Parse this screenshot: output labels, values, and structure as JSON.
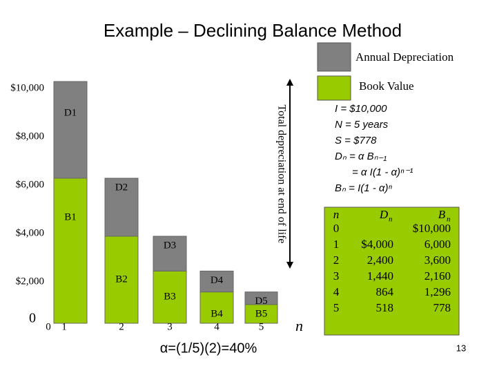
{
  "title": "Example – Declining Balance Method",
  "chart_data": {
    "type": "stacked_bar",
    "categories": [
      "1",
      "2",
      "3",
      "4",
      "5"
    ],
    "x_origin_label": "0",
    "x_axis_label": "n",
    "series": [
      {
        "name": "Book Value",
        "color": "#99cc00",
        "values": [
          6000,
          3600,
          2160,
          1296,
          778
        ],
        "labels": [
          "B1",
          "B2",
          "B3",
          "B4",
          "B5"
        ]
      },
      {
        "name": "Annual Depreciation",
        "color": "#808080",
        "values": [
          4000,
          2400,
          1440,
          864,
          518
        ],
        "labels": [
          "D1",
          "D2",
          "D3",
          "D4",
          "D5"
        ]
      }
    ],
    "ylim": [
      0,
      10000
    ],
    "yticks": [
      {
        "value": 0,
        "label": "0"
      },
      {
        "value": 2000,
        "label": "$2,000"
      },
      {
        "value": 4000,
        "label": "$4,000"
      },
      {
        "value": 6000,
        "label": "$6,000"
      },
      {
        "value": 8000,
        "label": "$8,000"
      },
      {
        "value": 10000,
        "label": "$10,000"
      }
    ],
    "annotation": "Total depreciation at end of life"
  },
  "formulas": [
    "I = $10,000",
    "N = 5 years",
    "S = $778",
    "Dₙ = α Bₙ₋₁",
    "= α I(1 - α)ⁿ⁻¹",
    "Bₙ = I(1 - α)ⁿ"
  ],
  "table": {
    "headers": [
      {
        "symbol": "n"
      },
      {
        "symbol": "D",
        "subscript": "n"
      },
      {
        "symbol": "B",
        "subscript": "n"
      }
    ],
    "rows": [
      [
        "0",
        "",
        "$10,000"
      ],
      [
        "1",
        "$4,000",
        "6,000"
      ],
      [
        "2",
        "2,400",
        "3,600"
      ],
      [
        "3",
        "1,440",
        "2,160"
      ],
      [
        "4",
        "864",
        "1,296"
      ],
      [
        "5",
        "518",
        "778"
      ]
    ]
  },
  "alpha_note": "α=(1/5)(2)=40%",
  "page_number": "13"
}
